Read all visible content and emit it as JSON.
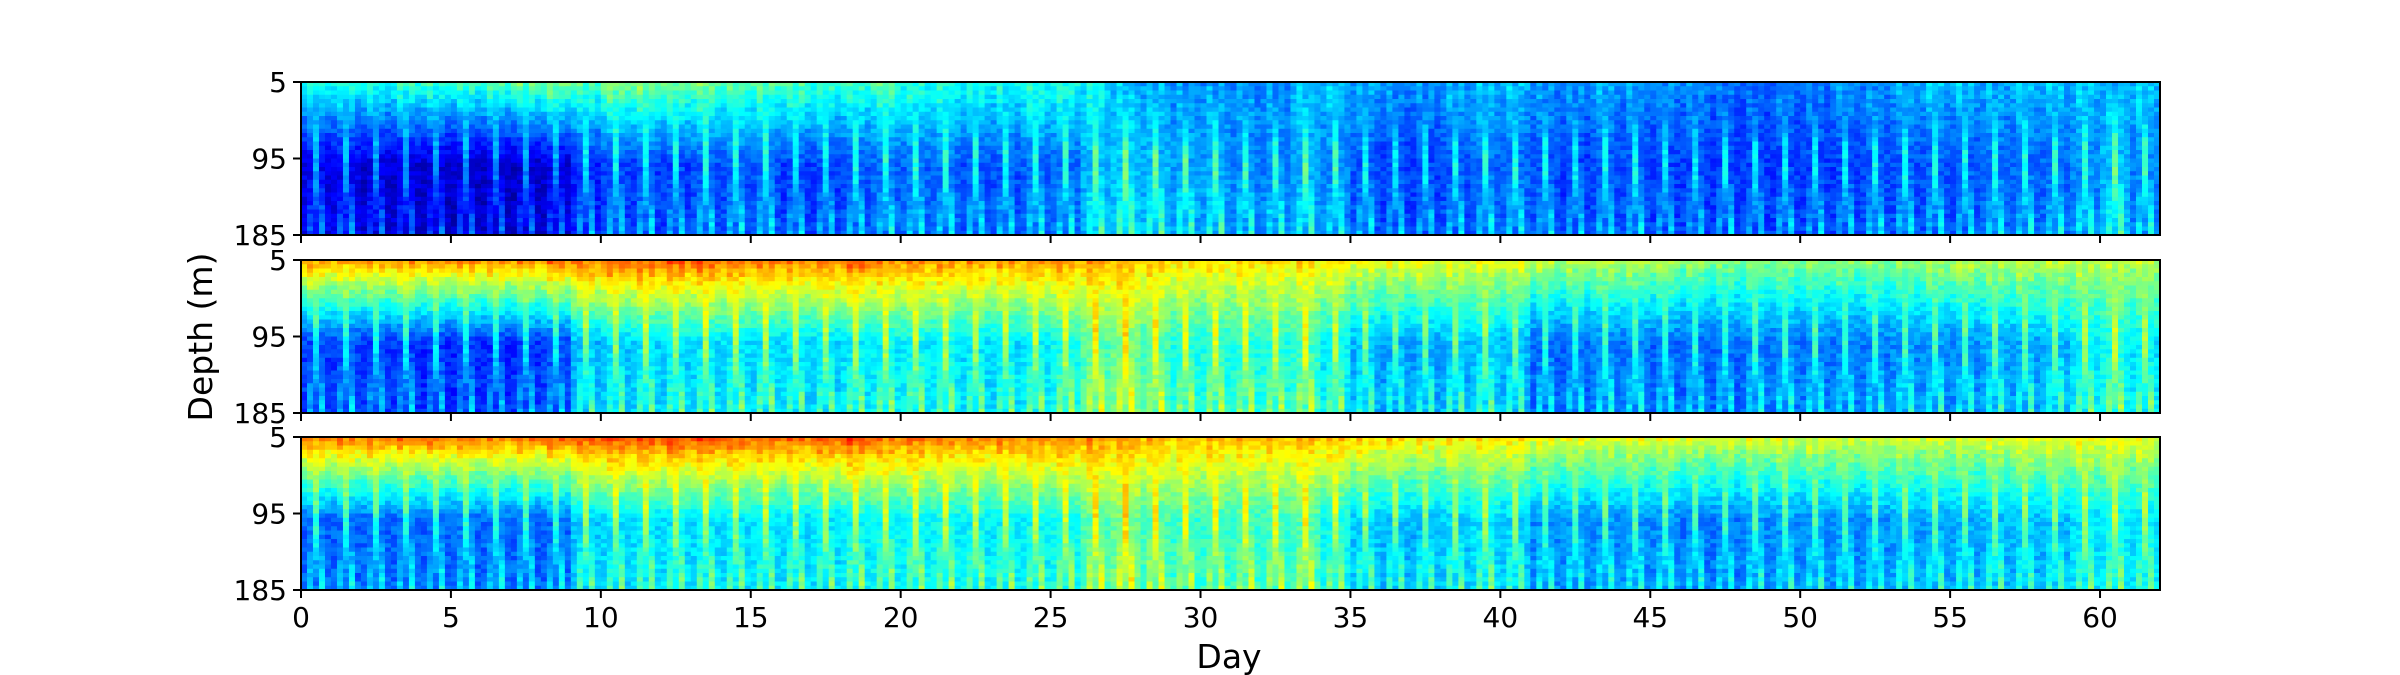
{
  "chart_data": {
    "type": "heatmap",
    "title": "",
    "xlabel": "Day",
    "ylabel": "Depth (m)",
    "xlim": [
      0,
      62
    ],
    "ylim": [
      185,
      5
    ],
    "colormap": "jet",
    "x_ticks": [
      0,
      5,
      10,
      15,
      20,
      25,
      30,
      35,
      40,
      45,
      50,
      55,
      60
    ],
    "y_ticks": [
      5,
      95,
      185
    ],
    "panels": [
      {
        "name": "panel-1",
        "surface_intensity": [
          0.4,
          0.4,
          0.4,
          0.42,
          0.43,
          0.43,
          0.45,
          0.47,
          0.5,
          0.45,
          0.5,
          0.5,
          0.48,
          0.48,
          0.45,
          0.45,
          0.45,
          0.42,
          0.42,
          0.45,
          0.4,
          0.4,
          0.38,
          0.38,
          0.4,
          0.4,
          0.35,
          0.3,
          0.28,
          0.25,
          0.25,
          0.25,
          0.25,
          0.3,
          0.3,
          0.28,
          0.25,
          0.25,
          0.28,
          0.3,
          0.3,
          0.25,
          0.25,
          0.28,
          0.25,
          0.25,
          0.25,
          0.22,
          0.2,
          0.22,
          0.22,
          0.25,
          0.25,
          0.28,
          0.3,
          0.3,
          0.28,
          0.3,
          0.3,
          0.3,
          0.28,
          0.3
        ],
        "deep_intensity": [
          0.1,
          0.1,
          0.08,
          0.08,
          0.07,
          0.07,
          0.07,
          0.07,
          0.08,
          0.15,
          0.18,
          0.18,
          0.18,
          0.2,
          0.2,
          0.2,
          0.18,
          0.18,
          0.2,
          0.22,
          0.22,
          0.22,
          0.2,
          0.2,
          0.22,
          0.22,
          0.3,
          0.32,
          0.3,
          0.28,
          0.28,
          0.25,
          0.25,
          0.28,
          0.25,
          0.2,
          0.18,
          0.18,
          0.2,
          0.22,
          0.22,
          0.2,
          0.18,
          0.2,
          0.2,
          0.18,
          0.18,
          0.18,
          0.18,
          0.18,
          0.18,
          0.18,
          0.2,
          0.2,
          0.2,
          0.2,
          0.22,
          0.22,
          0.22,
          0.25,
          0.3,
          0.25
        ]
      },
      {
        "name": "panel-2",
        "surface_intensity": [
          0.72,
          0.72,
          0.72,
          0.74,
          0.74,
          0.74,
          0.74,
          0.74,
          0.76,
          0.76,
          0.78,
          0.78,
          0.78,
          0.78,
          0.76,
          0.76,
          0.74,
          0.76,
          0.78,
          0.74,
          0.74,
          0.72,
          0.72,
          0.72,
          0.72,
          0.72,
          0.7,
          0.68,
          0.66,
          0.64,
          0.64,
          0.64,
          0.64,
          0.64,
          0.64,
          0.6,
          0.6,
          0.6,
          0.6,
          0.6,
          0.6,
          0.55,
          0.55,
          0.55,
          0.55,
          0.55,
          0.5,
          0.5,
          0.5,
          0.5,
          0.5,
          0.5,
          0.5,
          0.5,
          0.52,
          0.55,
          0.55,
          0.55,
          0.55,
          0.55,
          0.55,
          0.55
        ],
        "deep_intensity": [
          0.18,
          0.18,
          0.17,
          0.17,
          0.16,
          0.16,
          0.16,
          0.17,
          0.18,
          0.3,
          0.32,
          0.33,
          0.33,
          0.34,
          0.34,
          0.34,
          0.33,
          0.33,
          0.35,
          0.36,
          0.36,
          0.36,
          0.34,
          0.34,
          0.36,
          0.38,
          0.45,
          0.48,
          0.44,
          0.4,
          0.4,
          0.4,
          0.4,
          0.42,
          0.36,
          0.3,
          0.28,
          0.28,
          0.3,
          0.32,
          0.3,
          0.22,
          0.22,
          0.24,
          0.24,
          0.22,
          0.22,
          0.22,
          0.24,
          0.24,
          0.24,
          0.24,
          0.24,
          0.26,
          0.26,
          0.26,
          0.28,
          0.28,
          0.3,
          0.35,
          0.38,
          0.35
        ]
      },
      {
        "name": "panel-3",
        "surface_intensity": [
          0.76,
          0.76,
          0.76,
          0.76,
          0.76,
          0.76,
          0.76,
          0.76,
          0.78,
          0.78,
          0.8,
          0.8,
          0.8,
          0.8,
          0.78,
          0.78,
          0.76,
          0.78,
          0.8,
          0.76,
          0.76,
          0.74,
          0.74,
          0.74,
          0.74,
          0.74,
          0.72,
          0.7,
          0.68,
          0.68,
          0.68,
          0.68,
          0.68,
          0.68,
          0.68,
          0.66,
          0.66,
          0.64,
          0.64,
          0.64,
          0.64,
          0.6,
          0.6,
          0.6,
          0.6,
          0.6,
          0.58,
          0.58,
          0.58,
          0.58,
          0.58,
          0.58,
          0.58,
          0.58,
          0.58,
          0.58,
          0.58,
          0.6,
          0.6,
          0.6,
          0.6,
          0.6
        ],
        "deep_intensity": [
          0.22,
          0.22,
          0.22,
          0.22,
          0.22,
          0.22,
          0.22,
          0.22,
          0.22,
          0.32,
          0.33,
          0.34,
          0.34,
          0.34,
          0.34,
          0.34,
          0.34,
          0.34,
          0.36,
          0.37,
          0.37,
          0.37,
          0.36,
          0.36,
          0.37,
          0.38,
          0.45,
          0.48,
          0.44,
          0.42,
          0.42,
          0.42,
          0.42,
          0.44,
          0.38,
          0.32,
          0.3,
          0.3,
          0.32,
          0.34,
          0.32,
          0.26,
          0.26,
          0.26,
          0.26,
          0.26,
          0.24,
          0.24,
          0.26,
          0.26,
          0.26,
          0.26,
          0.26,
          0.28,
          0.28,
          0.28,
          0.3,
          0.3,
          0.3,
          0.34,
          0.36,
          0.34
        ]
      }
    ]
  }
}
